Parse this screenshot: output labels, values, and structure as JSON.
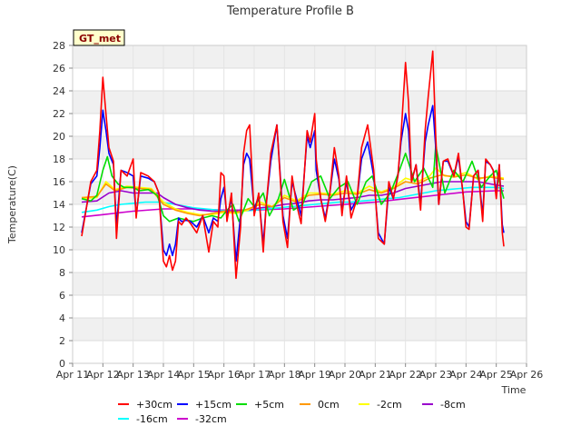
{
  "chart_data": {
    "type": "line",
    "title": "Temperature Profile B",
    "xlabel": "Time",
    "ylabel": "Temperature(C)",
    "badge": "GT_met",
    "ylim": [
      0,
      28
    ],
    "yticks": [
      0,
      2,
      4,
      6,
      8,
      10,
      12,
      14,
      16,
      18,
      20,
      22,
      24,
      26,
      28
    ],
    "xlim": [
      11,
      26
    ],
    "xticks": [
      {
        "day": 11,
        "label": "Apr 11"
      },
      {
        "day": 12,
        "label": "Apr 12"
      },
      {
        "day": 13,
        "label": "Apr 13"
      },
      {
        "day": 14,
        "label": "Apr 14"
      },
      {
        "day": 15,
        "label": "Apr 15"
      },
      {
        "day": 16,
        "label": "Apr 16"
      },
      {
        "day": 17,
        "label": "Apr 17"
      },
      {
        "day": 18,
        "label": "Apr 18"
      },
      {
        "day": 19,
        "label": "Apr 19"
      },
      {
        "day": 20,
        "label": "Apr 20"
      },
      {
        "day": 21,
        "label": "Apr 21"
      },
      {
        "day": 22,
        "label": "Apr 22"
      },
      {
        "day": 23,
        "label": "Apr 23"
      },
      {
        "day": 24,
        "label": "Apr 24"
      },
      {
        "day": 25,
        "label": "Apr 25"
      },
      {
        "day": 26,
        "label": "Apr 26"
      }
    ],
    "grid": true,
    "legend_position": "bottom",
    "series": [
      {
        "name": "+30cm",
        "color": "#ff0000",
        "x": [
          11.3,
          11.6,
          11.8,
          11.9,
          12.0,
          12.1,
          12.2,
          12.35,
          12.45,
          12.6,
          12.8,
          13.0,
          13.1,
          13.25,
          13.5,
          13.7,
          13.85,
          14.0,
          14.1,
          14.2,
          14.3,
          14.4,
          14.5,
          14.6,
          14.75,
          14.9,
          15.1,
          15.3,
          15.5,
          15.65,
          15.8,
          15.9,
          16.0,
          16.1,
          16.25,
          16.4,
          16.55,
          16.65,
          16.75,
          16.85,
          17.0,
          17.15,
          17.3,
          17.4,
          17.55,
          17.75,
          17.95,
          18.1,
          18.25,
          18.4,
          18.55,
          18.75,
          18.85,
          19.0,
          19.05,
          19.2,
          19.35,
          19.5,
          19.65,
          19.8,
          19.9,
          20.05,
          20.2,
          20.4,
          20.55,
          20.75,
          20.95,
          21.1,
          21.3,
          21.45,
          21.6,
          21.75,
          21.85,
          22.0,
          22.1,
          22.2,
          22.35,
          22.5,
          22.65,
          22.75,
          22.9,
          23.0,
          23.1,
          23.25,
          23.4,
          23.6,
          23.75,
          23.9,
          24.0,
          24.1,
          24.25,
          24.4,
          24.55,
          24.65,
          24.8,
          24.9,
          25.0,
          25.1,
          25.2,
          25.25
        ],
        "y": [
          11.2,
          16.0,
          17.0,
          20.5,
          25.2,
          22.0,
          19.0,
          17.8,
          11.0,
          17.0,
          16.5,
          18.0,
          12.8,
          16.8,
          16.5,
          16.0,
          15.0,
          9.0,
          8.5,
          9.5,
          8.2,
          9.0,
          12.5,
          12.2,
          12.8,
          12.3,
          11.5,
          13.0,
          9.8,
          12.5,
          12.0,
          16.8,
          16.5,
          12.5,
          15.0,
          7.5,
          12.0,
          18.5,
          20.5,
          21.0,
          13.0,
          15.0,
          9.8,
          14.0,
          18.5,
          21.0,
          12.5,
          10.2,
          16.5,
          14.0,
          12.3,
          20.5,
          19.5,
          22.0,
          18.0,
          14.5,
          12.5,
          15.0,
          19.0,
          16.5,
          13.0,
          16.5,
          12.8,
          14.5,
          19.0,
          21.0,
          17.0,
          11.0,
          10.5,
          16.0,
          14.5,
          16.5,
          20.0,
          26.5,
          23.0,
          16.0,
          17.5,
          13.5,
          20.5,
          23.5,
          27.5,
          20.0,
          14.0,
          17.8,
          18.0,
          16.5,
          18.5,
          15.0,
          12.0,
          11.8,
          16.5,
          17.0,
          12.5,
          18.0,
          17.5,
          17.0,
          14.5,
          17.5,
          11.5,
          10.3
        ]
      },
      {
        "name": "+15cm",
        "color": "#0000ff",
        "x": [
          11.3,
          11.6,
          11.8,
          11.9,
          12.0,
          12.1,
          12.2,
          12.35,
          12.45,
          12.6,
          12.8,
          13.0,
          13.1,
          13.25,
          13.5,
          13.7,
          13.85,
          14.0,
          14.1,
          14.2,
          14.3,
          14.4,
          14.5,
          14.6,
          14.75,
          14.9,
          15.1,
          15.3,
          15.5,
          15.65,
          15.8,
          15.9,
          16.0,
          16.1,
          16.25,
          16.4,
          16.55,
          16.65,
          16.75,
          16.85,
          17.0,
          17.15,
          17.3,
          17.4,
          17.55,
          17.75,
          17.95,
          18.1,
          18.25,
          18.4,
          18.55,
          18.75,
          18.85,
          19.0,
          19.05,
          19.2,
          19.35,
          19.5,
          19.65,
          19.8,
          19.9,
          20.05,
          20.2,
          20.4,
          20.55,
          20.75,
          20.95,
          21.1,
          21.3,
          21.45,
          21.6,
          21.75,
          21.85,
          22.0,
          22.1,
          22.2,
          22.35,
          22.5,
          22.65,
          22.75,
          22.9,
          23.0,
          23.1,
          23.25,
          23.4,
          23.6,
          23.75,
          23.9,
          24.0,
          24.1,
          24.25,
          24.4,
          24.55,
          24.65,
          24.8,
          24.9,
          25.0,
          25.1,
          25.2,
          25.25
        ],
        "y": [
          11.5,
          15.8,
          16.5,
          19.0,
          22.3,
          20.5,
          18.5,
          17.5,
          12.0,
          17.0,
          16.8,
          16.5,
          13.0,
          16.5,
          16.3,
          16.0,
          15.0,
          10.0,
          9.5,
          10.5,
          9.5,
          10.5,
          12.8,
          12.5,
          12.6,
          12.5,
          12.0,
          13.0,
          11.5,
          12.8,
          12.5,
          14.5,
          15.5,
          13.0,
          14.5,
          9.0,
          13.0,
          17.5,
          18.5,
          18.0,
          13.5,
          14.8,
          10.5,
          14.0,
          17.8,
          21.0,
          13.0,
          11.0,
          16.0,
          14.5,
          13.0,
          20.0,
          19.0,
          20.5,
          17.0,
          14.5,
          12.8,
          15.0,
          18.0,
          16.2,
          13.5,
          16.0,
          13.5,
          14.5,
          18.0,
          19.5,
          16.5,
          11.5,
          10.5,
          15.5,
          14.5,
          16.5,
          19.5,
          22.0,
          20.5,
          16.0,
          17.5,
          14.0,
          19.5,
          21.0,
          22.7,
          19.0,
          14.0,
          17.8,
          17.8,
          16.5,
          18.2,
          15.0,
          12.5,
          12.0,
          16.5,
          17.0,
          13.0,
          17.8,
          17.5,
          17.0,
          15.0,
          17.5,
          12.2,
          11.5
        ]
      },
      {
        "name": "+5cm",
        "color": "#00dd00",
        "x": [
          11.3,
          11.6,
          11.8,
          12.0,
          12.15,
          12.3,
          12.5,
          12.7,
          13.0,
          13.2,
          13.5,
          13.8,
          14.0,
          14.2,
          14.5,
          14.8,
          15.0,
          15.3,
          15.6,
          15.9,
          16.1,
          16.3,
          16.5,
          16.8,
          17.0,
          17.3,
          17.5,
          17.8,
          18.0,
          18.3,
          18.6,
          18.9,
          19.2,
          19.5,
          19.8,
          20.1,
          20.4,
          20.7,
          20.9,
          21.2,
          21.5,
          21.8,
          22.0,
          22.3,
          22.6,
          22.9,
          23.0,
          23.3,
          23.6,
          23.9,
          24.2,
          24.5,
          24.8,
          25.0,
          25.25
        ],
        "y": [
          14.5,
          14.3,
          14.8,
          17.0,
          18.2,
          16.5,
          15.8,
          15.5,
          15.5,
          15.2,
          15.3,
          14.8,
          13.0,
          12.5,
          12.8,
          12.6,
          12.5,
          12.8,
          13.0,
          12.8,
          13.5,
          14.0,
          12.5,
          14.5,
          13.8,
          15.0,
          13.0,
          14.5,
          16.2,
          13.5,
          14.0,
          16.0,
          16.5,
          14.5,
          15.5,
          16.0,
          14.0,
          16.0,
          16.5,
          14.0,
          15.0,
          17.0,
          18.5,
          16.0,
          17.2,
          15.5,
          19.2,
          15.0,
          17.0,
          16.0,
          17.8,
          15.5,
          16.5,
          17.0,
          14.5
        ]
      },
      {
        "name": "0cm",
        "color": "#ff9900",
        "x": [
          11.3,
          11.8,
          12.1,
          12.4,
          12.8,
          13.2,
          13.6,
          14.0,
          14.4,
          14.8,
          15.2,
          15.6,
          16.0,
          16.4,
          16.8,
          17.2,
          17.6,
          18.0,
          18.4,
          18.8,
          19.2,
          19.6,
          20.0,
          20.4,
          20.8,
          21.2,
          21.6,
          22.0,
          22.4,
          22.8,
          23.2,
          23.6,
          24.0,
          24.4,
          24.8,
          25.25
        ],
        "y": [
          14.6,
          14.7,
          15.8,
          15.2,
          15.5,
          15.4,
          15.3,
          14.0,
          13.5,
          13.2,
          13.0,
          13.2,
          13.4,
          13.3,
          13.6,
          14.0,
          13.8,
          14.6,
          14.2,
          14.8,
          14.9,
          14.8,
          15.0,
          14.9,
          15.3,
          15.0,
          15.4,
          16.0,
          15.8,
          16.3,
          16.6,
          16.4,
          16.6,
          16.3,
          16.4,
          16.2
        ]
      },
      {
        "name": "-2cm",
        "color": "#ffff00",
        "x": [
          11.3,
          11.8,
          12.1,
          12.4,
          12.8,
          13.2,
          13.6,
          14.0,
          14.4,
          14.8,
          15.2,
          15.6,
          16.0,
          16.4,
          16.8,
          17.2,
          17.6,
          18.0,
          18.4,
          18.8,
          19.2,
          19.6,
          20.0,
          20.4,
          20.8,
          21.2,
          21.6,
          22.0,
          22.4,
          22.8,
          23.0,
          23.3,
          23.6,
          24.0,
          24.4,
          24.8,
          25.25
        ],
        "y": [
          14.5,
          14.6,
          16.0,
          15.3,
          15.6,
          15.5,
          15.4,
          14.2,
          13.6,
          13.3,
          13.1,
          13.1,
          13.3,
          13.2,
          13.5,
          14.2,
          13.8,
          14.8,
          14.3,
          15.0,
          15.0,
          14.9,
          15.2,
          15.0,
          15.6,
          15.1,
          15.5,
          16.3,
          16.0,
          16.5,
          17.2,
          16.5,
          16.5,
          16.8,
          16.2,
          16.5,
          16.3
        ]
      },
      {
        "name": "-8cm",
        "color": "#9900cc",
        "x": [
          11.3,
          11.8,
          12.2,
          12.6,
          13.0,
          13.4,
          13.8,
          14.0,
          14.4,
          14.8,
          15.2,
          15.6,
          16.0,
          16.4,
          16.8,
          17.2,
          17.6,
          18.0,
          18.4,
          18.8,
          19.2,
          19.6,
          20.0,
          20.4,
          20.8,
          21.2,
          21.6,
          22.0,
          22.4,
          22.8,
          23.2,
          23.6,
          24.0,
          24.4,
          24.8,
          25.25
        ],
        "y": [
          14.2,
          14.3,
          15.0,
          15.2,
          15.0,
          15.0,
          15.0,
          14.6,
          14.0,
          13.7,
          13.5,
          13.4,
          13.4,
          13.4,
          13.5,
          13.7,
          13.8,
          14.0,
          14.1,
          14.3,
          14.4,
          14.4,
          14.5,
          14.6,
          14.8,
          14.8,
          15.0,
          15.4,
          15.6,
          15.8,
          16.0,
          16.0,
          16.0,
          16.0,
          15.8,
          15.6
        ]
      },
      {
        "name": "-16cm",
        "color": "#00ffff",
        "x": [
          11.3,
          11.8,
          12.2,
          12.6,
          13.0,
          13.4,
          13.8,
          14.2,
          14.6,
          15.0,
          15.4,
          15.8,
          16.2,
          16.6,
          17.0,
          17.4,
          17.8,
          18.2,
          18.6,
          19.0,
          19.4,
          19.8,
          20.2,
          20.6,
          21.0,
          21.4,
          21.8,
          22.2,
          22.6,
          23.0,
          23.4,
          23.8,
          24.2,
          24.6,
          25.0,
          25.25
        ],
        "y": [
          13.3,
          13.5,
          13.8,
          14.0,
          14.1,
          14.2,
          14.2,
          14.1,
          13.9,
          13.7,
          13.6,
          13.5,
          13.4,
          13.4,
          13.5,
          13.6,
          13.7,
          13.8,
          13.9,
          14.0,
          14.1,
          14.2,
          14.2,
          14.3,
          14.4,
          14.5,
          14.6,
          14.8,
          15.0,
          15.2,
          15.3,
          15.4,
          15.5,
          15.5,
          15.5,
          15.4
        ]
      },
      {
        "name": "-32cm",
        "color": "#cc00cc",
        "x": [
          11.3,
          12.0,
          13.0,
          14.0,
          15.0,
          16.0,
          17.0,
          18.0,
          19.0,
          20.0,
          21.0,
          22.0,
          23.0,
          24.0,
          25.0,
          25.25
        ],
        "y": [
          12.9,
          13.1,
          13.4,
          13.6,
          13.6,
          13.5,
          13.5,
          13.6,
          13.8,
          14.0,
          14.2,
          14.5,
          14.8,
          15.1,
          15.2,
          15.2
        ]
      }
    ]
  }
}
